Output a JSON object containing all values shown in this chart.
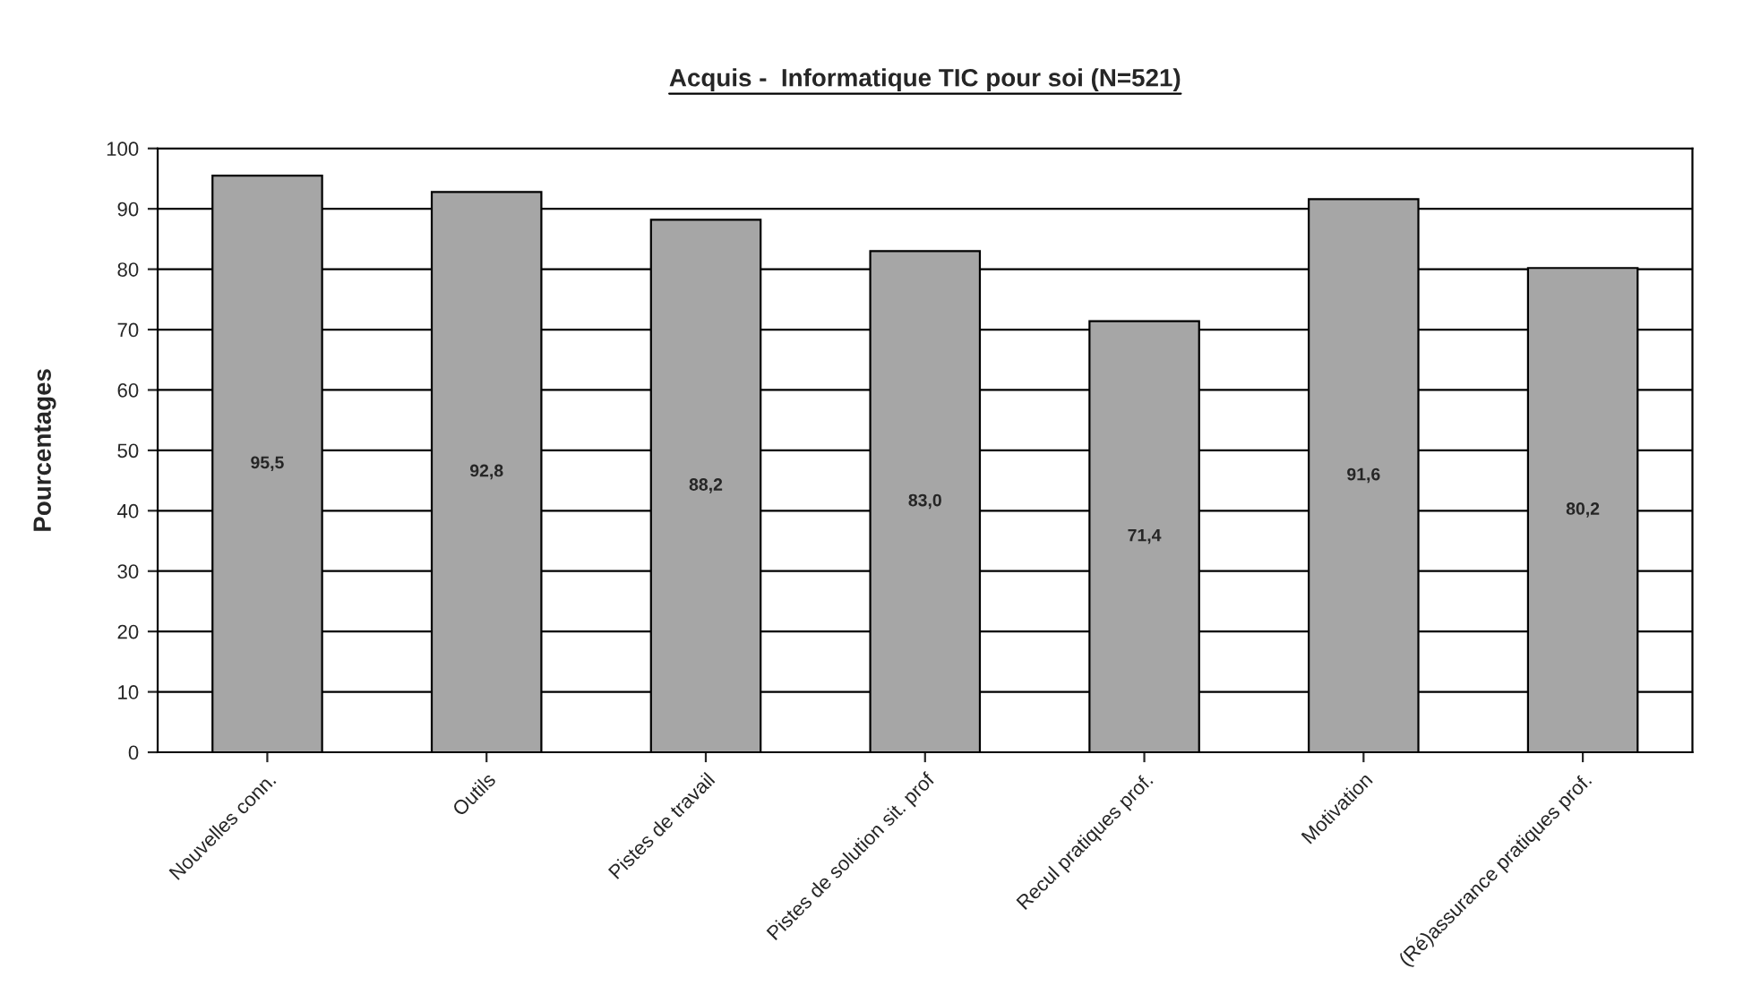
{
  "chart_data": {
    "type": "bar",
    "title": "Acquis -  Informatique TIC pour soi (N=521)",
    "ylabel": "Pourcentages",
    "categories": [
      "Nouvelles conn.",
      "Outils",
      "Pistes de travail",
      "Pistes de solution sit. prof",
      "Recul pratiques prof.",
      "Motivation",
      "(Ré)assurance pratiques prof."
    ],
    "values": [
      95.5,
      92.8,
      88.2,
      83.0,
      71.4,
      91.6,
      80.2
    ],
    "value_labels": [
      "95,5",
      "92,8",
      "88,2",
      "83,0",
      "71,4",
      "91,6",
      "80,2"
    ],
    "color": "#a6a6a6",
    "ylim": [
      0,
      100
    ],
    "yticks": [
      0,
      10,
      20,
      30,
      40,
      50,
      60,
      70,
      80,
      90,
      100
    ],
    "grid": "y",
    "legend": false
  }
}
